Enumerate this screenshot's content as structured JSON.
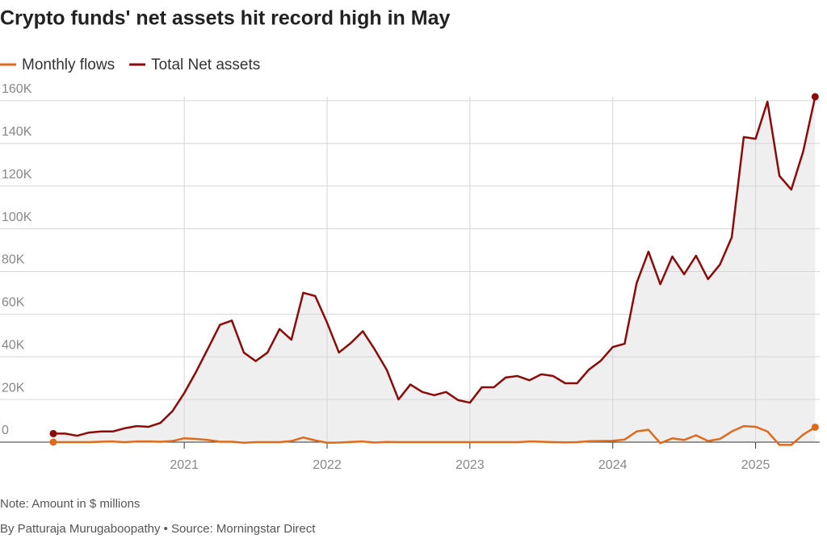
{
  "chart_data": {
    "type": "line",
    "title": "Crypto funds' net assets hit record high in May",
    "note": "Note: Amount in $ millions",
    "source": "By Patturaja Murugaboopathy  • Source: Morningstar Direct",
    "x": [
      2020.083,
      2020.167,
      2020.25,
      2020.333,
      2020.417,
      2020.5,
      2020.583,
      2020.667,
      2020.75,
      2020.833,
      2020.917,
      2021,
      2021.083,
      2021.167,
      2021.25,
      2021.333,
      2021.417,
      2021.5,
      2021.583,
      2021.667,
      2021.75,
      2021.833,
      2021.917,
      2022,
      2022.083,
      2022.167,
      2022.25,
      2022.333,
      2022.417,
      2022.5,
      2022.583,
      2022.667,
      2022.75,
      2022.833,
      2022.917,
      2023,
      2023.083,
      2023.167,
      2023.25,
      2023.333,
      2023.417,
      2023.5,
      2023.583,
      2023.667,
      2023.75,
      2023.833,
      2023.917,
      2024,
      2024.083,
      2024.167,
      2024.25,
      2024.333,
      2024.417,
      2024.5,
      2024.583,
      2024.667,
      2024.75,
      2024.833,
      2024.917,
      2025,
      2025.083,
      2025.167,
      2025.25,
      2025.333,
      2025.417
    ],
    "series": [
      {
        "name": "Monthly flows",
        "color": "#e06a1b",
        "values": [
          0,
          0,
          0,
          0,
          200,
          300,
          0,
          300,
          300,
          200,
          500,
          1800,
          1500,
          1000,
          200,
          200,
          -300,
          0,
          0,
          0,
          500,
          2200,
          800,
          -300,
          -200,
          100,
          300,
          -200,
          100,
          0,
          0,
          0,
          0,
          0,
          0,
          0,
          0,
          0,
          0,
          0,
          300,
          200,
          0,
          -100,
          0,
          400,
          500,
          600,
          1200,
          5000,
          5800,
          -500,
          1800,
          1000,
          3200,
          500,
          1500,
          5000,
          7500,
          7200,
          5000,
          -1300,
          -1300,
          3500,
          7000
        ]
      },
      {
        "name": "Total Net assets",
        "color": "#8b0b0b",
        "values": [
          4000,
          4000,
          3000,
          4500,
          5000,
          5000,
          6500,
          7500,
          7200,
          9000,
          14500,
          23000,
          33000,
          44000,
          55000,
          57000,
          42000,
          38000,
          42000,
          53000,
          48000,
          70000,
          68500,
          56000,
          42000,
          46500,
          52000,
          43500,
          34000,
          20000,
          27000,
          23500,
          22000,
          23500,
          19700,
          18500,
          25700,
          25700,
          30300,
          31000,
          29000,
          31800,
          31000,
          27600,
          27600,
          34000,
          38200,
          44600,
          46100,
          74500,
          89300,
          74000,
          87000,
          78700,
          87400,
          76400,
          83200,
          96000,
          143000,
          142200,
          159600,
          124800,
          118400,
          136200,
          161900
        ]
      }
    ],
    "xlim": [
      2019.71,
      2025.5
    ],
    "xticks": [
      2021,
      2022,
      2023,
      2024,
      2025
    ],
    "ylim": [
      -5000,
      165000
    ],
    "yticks": [
      0,
      {
        "value": 20000,
        "label": "20K"
      },
      {
        "value": 40000,
        "label": "40K"
      },
      {
        "value": 60000,
        "label": "60K"
      },
      {
        "value": 80000,
        "label": "80K"
      },
      {
        "value": 100000,
        "label": "100K"
      },
      {
        "value": 120000,
        "label": "120K"
      },
      {
        "value": 140000,
        "label": "140K"
      },
      {
        "value": 160000,
        "label": "160K"
      }
    ],
    "grid": true,
    "area_fill": "#efefef"
  }
}
